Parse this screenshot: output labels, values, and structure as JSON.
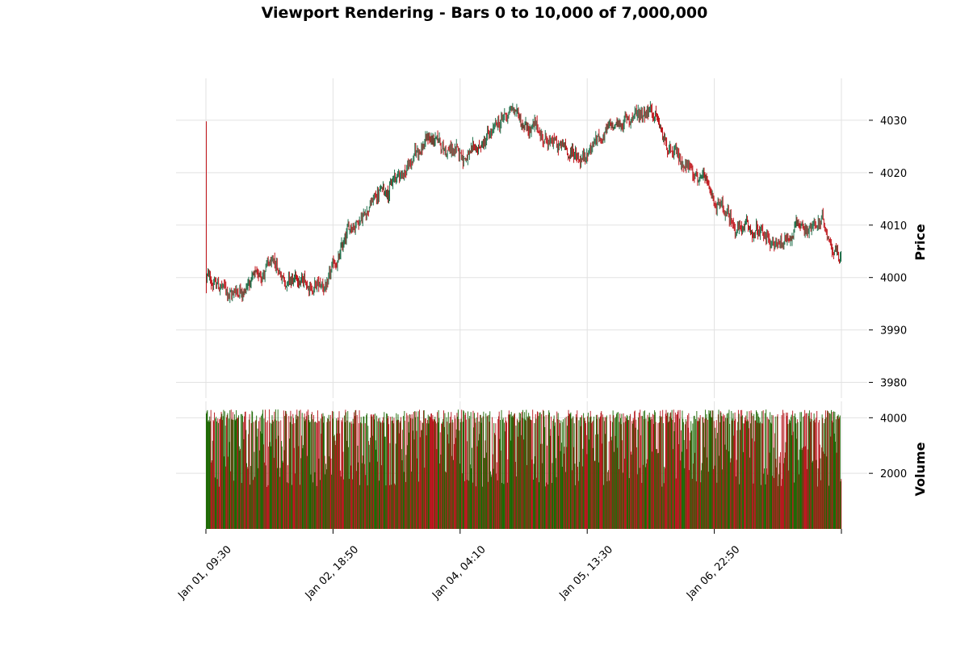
{
  "chart_data": {
    "type": "candlestick",
    "title": "Viewport Rendering - Bars 0 to 10,000 of 7,000,000",
    "price_panel": {
      "ylabel": "Price",
      "ylim": [
        3977,
        4038
      ],
      "yticks": [
        3980,
        3990,
        4000,
        4010,
        4020,
        4030
      ],
      "up_color": "#1f6f4a",
      "down_color": "#c0141a",
      "series": {
        "name": "",
        "points": [
          [
            0,
            4000
          ],
          [
            400,
            3997
          ],
          [
            1000,
            4002
          ],
          [
            1400,
            3999
          ],
          [
            1900,
            3998
          ],
          [
            2300,
            4010
          ],
          [
            2700,
            4016
          ],
          [
            3100,
            4020
          ],
          [
            3500,
            4027
          ],
          [
            3800,
            4024
          ],
          [
            4200,
            4023
          ],
          [
            4500,
            4027
          ],
          [
            4800,
            4032
          ],
          [
            5100,
            4029
          ],
          [
            5500,
            4025
          ],
          [
            5900,
            4023
          ],
          [
            6200,
            4027
          ],
          [
            6500,
            4029
          ],
          [
            7000,
            4033
          ],
          [
            7300,
            4023
          ],
          [
            7700,
            4021
          ],
          [
            8000,
            4014
          ],
          [
            8300,
            4010
          ],
          [
            8700,
            4008
          ],
          [
            9000,
            4006
          ],
          [
            9300,
            4010
          ],
          [
            9700,
            4010
          ],
          [
            10000,
            4004
          ]
        ]
      },
      "spike": {
        "x": 0,
        "high": 4029.8,
        "low": 3997
      }
    },
    "volume_panel": {
      "ylabel": "Volume",
      "yticks": [
        2000,
        4000
      ],
      "max_volume": 4300,
      "up_color": "#1a6600",
      "down_color": "#b5141a"
    },
    "x_axis": {
      "range": [
        0,
        10000
      ],
      "ticks": [
        {
          "pos": 0,
          "label": "Jan 01, 09:30"
        },
        {
          "pos": 2000,
          "label": "Jan 02, 18:50"
        },
        {
          "pos": 4000,
          "label": "Jan 04, 04:10"
        },
        {
          "pos": 6000,
          "label": "Jan 05, 13:30"
        },
        {
          "pos": 8000,
          "label": "Jan 06, 22:50"
        },
        {
          "pos": 10000,
          "label": ""
        }
      ]
    },
    "grid": true
  }
}
